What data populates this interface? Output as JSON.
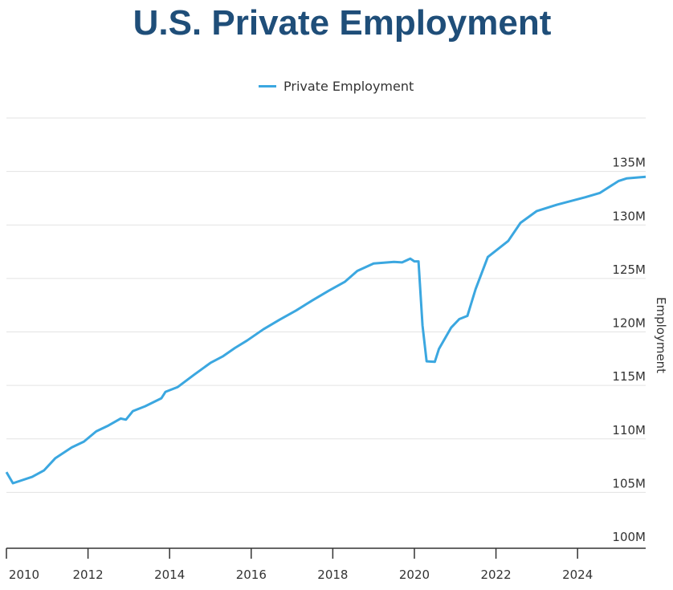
{
  "chart_data": {
    "type": "line",
    "title": "U.S. Private Employment",
    "xlabel": "",
    "ylabel": "Employment",
    "xlim": [
      2010,
      2025.67
    ],
    "ylim": [
      100,
      140
    ],
    "grid": true,
    "legend_position": "top-center",
    "x_ticks": [
      "2010",
      "2012",
      "2014",
      "2016",
      "2018",
      "2020",
      "2022",
      "2024"
    ],
    "y_ticks": [
      "100M",
      "105M",
      "110M",
      "115M",
      "120M",
      "125M",
      "130M",
      "135M"
    ],
    "series": [
      {
        "name": "Private Employment",
        "color": "#3ba7e0",
        "x": [
          2010.0,
          2010.16,
          2010.63,
          2010.92,
          2011.2,
          2011.6,
          2011.9,
          2012.2,
          2012.5,
          2012.8,
          2012.93,
          2013.1,
          2013.4,
          2013.8,
          2013.9,
          2014.2,
          2014.6,
          2015.0,
          2015.3,
          2015.6,
          2015.9,
          2016.3,
          2016.7,
          2017.1,
          2017.5,
          2017.9,
          2018.3,
          2018.6,
          2019.0,
          2019.5,
          2019.7,
          2019.9,
          2020.0,
          2020.1,
          2020.2,
          2020.3,
          2020.5,
          2020.6,
          2020.9,
          2021.1,
          2021.3,
          2021.5,
          2021.8,
          2022.3,
          2022.6,
          2023.0,
          2023.5,
          2024.2,
          2024.55,
          2025.0,
          2025.2,
          2025.67
        ],
        "values": [
          106.9,
          105.85,
          106.45,
          107.05,
          108.2,
          109.2,
          109.75,
          110.7,
          111.25,
          111.9,
          111.8,
          112.6,
          113.05,
          113.8,
          114.4,
          114.85,
          116.0,
          117.1,
          117.7,
          118.5,
          119.2,
          120.25,
          121.15,
          122.0,
          122.95,
          123.85,
          124.7,
          125.7,
          126.4,
          126.55,
          126.5,
          126.85,
          126.6,
          126.6,
          120.6,
          117.25,
          117.2,
          118.4,
          120.4,
          121.2,
          121.5,
          124.0,
          127.0,
          128.5,
          130.2,
          131.3,
          131.9,
          132.6,
          133.0,
          134.1,
          134.35,
          134.5
        ]
      }
    ]
  }
}
